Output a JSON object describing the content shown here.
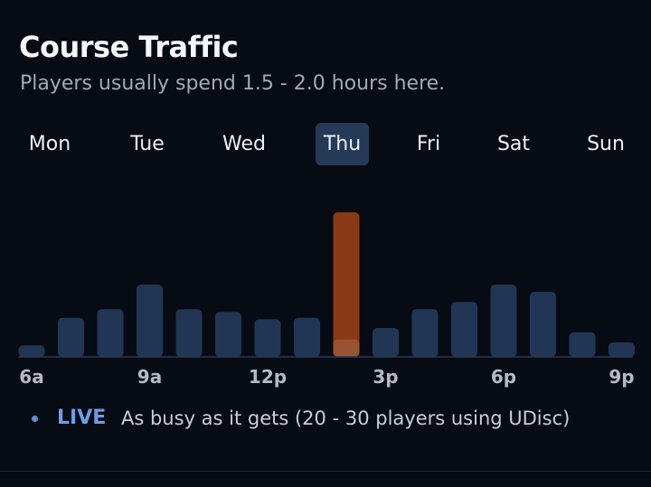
{
  "header": {
    "title": "Course Traffic",
    "subtitle": "Players usually spend 1.5 - 2.0 hours here."
  },
  "days": [
    {
      "label": "Mon",
      "selected": false
    },
    {
      "label": "Tue",
      "selected": false
    },
    {
      "label": "Wed",
      "selected": false
    },
    {
      "label": "Thu",
      "selected": true
    },
    {
      "label": "Fri",
      "selected": false
    },
    {
      "label": "Sat",
      "selected": false
    },
    {
      "label": "Sun",
      "selected": false
    }
  ],
  "chart_data": {
    "type": "bar",
    "categories": [
      "6a",
      "7a",
      "8a",
      "9a",
      "10a",
      "11a",
      "12p",
      "1p",
      "2p",
      "3p",
      "4p",
      "5p",
      "6p",
      "7p",
      "8p",
      "9p"
    ],
    "x_tick_labels": [
      "6a",
      "9a",
      "12p",
      "3p",
      "6p",
      "9p"
    ],
    "values": [
      8,
      27,
      33,
      50,
      33,
      31,
      26,
      27,
      100,
      20,
      33,
      38,
      50,
      45,
      17,
      10
    ],
    "live_index": 8,
    "live_value": 100,
    "live_usual_value": 12,
    "ylim": [
      0,
      100
    ],
    "grid": false,
    "colors": {
      "bar": "#213654",
      "live_bar": "#8a3a14",
      "baseline": "#2a3a52"
    }
  },
  "live": {
    "label": "LIVE",
    "text": "As busy as it gets (20 - 30 players using UDisc)"
  }
}
